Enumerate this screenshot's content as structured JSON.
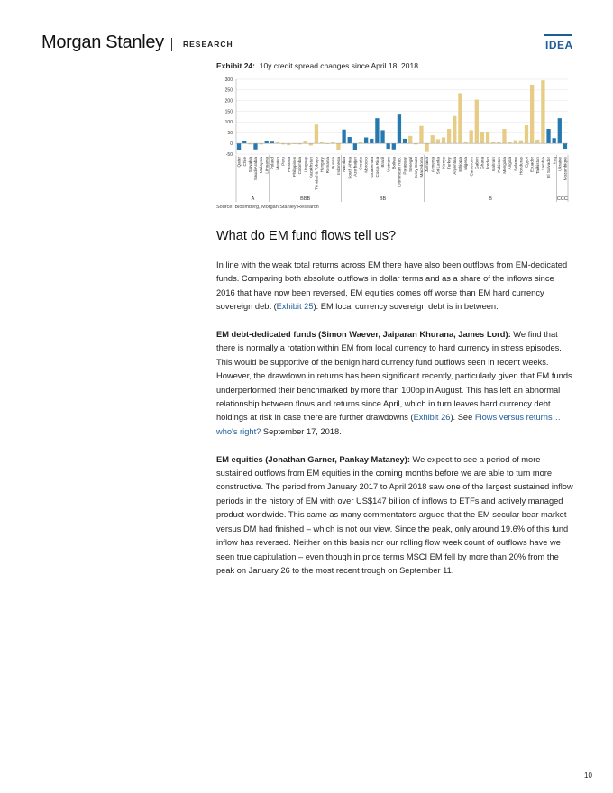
{
  "header": {
    "brand": "Morgan Stanley",
    "section": "RESEARCH",
    "tag": "IDEA"
  },
  "exhibit": {
    "label": "Exhibit 24:",
    "title": "10y credit spread changes since April 18, 2018",
    "source": "Source: Bloomberg, Morgan Stanley Research"
  },
  "chart_data": {
    "type": "bar",
    "ylim": [
      -50,
      300
    ],
    "yticks": [
      -50,
      0,
      50,
      100,
      150,
      200,
      250,
      300
    ],
    "groups": [
      {
        "label": "A",
        "categories": [
          "Qatar",
          "Chile",
          "Slovakia",
          "Saudi Arabia",
          "Malaysia",
          "Lithuania"
        ],
        "values": [
          -30,
          10,
          -5,
          -28,
          -5,
          12
        ],
        "colors": [
          "#2678b0",
          "#2678b0",
          "#e6cc85",
          "#2678b0",
          "#e6cc85",
          "#2678b0"
        ]
      },
      {
        "label": "BBB",
        "categories": [
          "Poland",
          "Mexico",
          "Peru",
          "Panama",
          "Philippines",
          "Colombia",
          "Uruguay",
          "Kazakhstan",
          "Trinidad & Tobago",
          "Hungary",
          "Romania",
          "Russia",
          "Indonesia"
        ],
        "values": [
          8,
          5,
          -5,
          -8,
          -3,
          -5,
          12,
          -10,
          88,
          5,
          -3,
          5,
          -30
        ],
        "colors": [
          "#2678b0",
          "#e6cc85",
          "#e6cc85",
          "#e6cc85",
          "#e6cc85",
          "#e6cc85",
          "#e6cc85",
          "#e6cc85",
          "#e6cc85",
          "#e6cc85",
          "#e6cc85",
          "#e6cc85",
          "#e6cc85"
        ]
      },
      {
        "label": "BB",
        "categories": [
          "Namibia",
          "South Africa",
          "Azerbaijan",
          "Croatia",
          "Morocco",
          "Guatemala",
          "Costa Rica",
          "Brazil",
          "Vietnam",
          "Bolivia",
          "Dominican Rep.",
          "Paraguay",
          "Senegal",
          "Ivory Coast",
          "Macedonia"
        ],
        "values": [
          65,
          30,
          -30,
          5,
          28,
          22,
          118,
          62,
          -25,
          -28,
          135,
          22,
          35,
          -5,
          82
        ],
        "colors": [
          "#2678b0",
          "#2678b0",
          "#2678b0",
          "#e6cc85",
          "#2678b0",
          "#2678b0",
          "#2678b0",
          "#2678b0",
          "#2678b0",
          "#2678b0",
          "#2678b0",
          "#2678b0",
          "#e6cc85",
          "#e6cc85",
          "#e6cc85"
        ]
      },
      {
        "label": "B",
        "categories": [
          "Jamaica",
          "Armenia",
          "Sri Lanka",
          "Kenya",
          "Turkey",
          "Argentina",
          "Ethiopia",
          "Nigeria",
          "Cameroon",
          "Gabon",
          "Ghana",
          "Jordan",
          "Bahrain",
          "Pakistan",
          "Mongolia",
          "Angola",
          "Belarus",
          "Honduras",
          "Egypt",
          "Ecuador",
          "Tajikistan",
          "Zambia",
          "El Salvador",
          "Iraq"
        ],
        "values": [
          -40,
          38,
          20,
          28,
          68,
          128,
          235,
          5,
          62,
          205,
          55,
          55,
          5,
          5,
          68,
          5,
          15,
          15,
          85,
          275,
          18,
          295,
          68,
          25
        ],
        "colors": [
          "#e6cc85",
          "#e6cc85",
          "#e6cc85",
          "#e6cc85",
          "#e6cc85",
          "#e6cc85",
          "#e6cc85",
          "#e6cc85",
          "#e6cc85",
          "#e6cc85",
          "#e6cc85",
          "#e6cc85",
          "#e6cc85",
          "#e6cc85",
          "#e6cc85",
          "#e6cc85",
          "#e6cc85",
          "#e6cc85",
          "#e6cc85",
          "#e6cc85",
          "#e6cc85",
          "#e6cc85",
          "#2678b0",
          "#2678b0"
        ]
      },
      {
        "label": "CCC",
        "categories": [
          "Ukraine",
          "Mozambique"
        ],
        "values": [
          118,
          -25
        ],
        "colors": [
          "#2678b0",
          "#2678b0"
        ]
      }
    ]
  },
  "heading": "What do EM fund flows tell us?",
  "paragraphs": [
    [
      {
        "text": "In line with the weak total returns across EM there have also been outflows from EM-dedicated funds. Comparing both absolute outflows in dollar terms and as a share of the inflows since 2016 that have now been reversed, EM equities comes off worse than EM hard currency sovereign debt ("
      },
      {
        "text": "Exhibit 25",
        "style": "link"
      },
      {
        "text": "). EM local currency sovereign debt is in between."
      }
    ],
    [
      {
        "text": "EM debt-dedicated funds (Simon Waever, Jaiparan Khurana, James Lord):",
        "style": "bold"
      },
      {
        "text": " We find that there is normally a rotation within EM from local currency to hard currency in stress episodes. This would be supportive of the benign hard currency fund outflows seen in recent weeks. However, the drawdown in returns has been significant recently, particularly given that EM funds underperformed their benchmarked by more than 100bp in August. This has left an abnormal relationship between flows and returns since April, which in turn leaves hard currency debt holdings at risk in case there are further drawdowns ("
      },
      {
        "text": "Exhibit 26",
        "style": "link"
      },
      {
        "text": "). See "
      },
      {
        "text": "Flows versus returns…who's right?",
        "style": "link"
      },
      {
        "text": " September 17, 2018."
      }
    ],
    [
      {
        "text": "EM equities (Jonathan Garner, Pankay Mataney):",
        "style": "bold"
      },
      {
        "text": " We expect to see a period of more sustained outflows from EM equities in the coming months before we are able to turn more constructive. The period from January 2017 to April 2018 saw one of the largest sustained inflow periods in the history of EM with over US$147 billion of inflows to ETFs and actively managed product worldwide. This came as many commentators argued that the EM secular bear market versus DM had finished – which is not our view. Since the peak, only around 19.6% of this fund inflow has reversed. Neither on this basis nor our rolling flow week count of outflows have we seen true capitulation – even though in price terms MSCI EM fell by more than 20% from the peak on January 26 to the most recent trough on September 11."
      }
    ]
  ],
  "page_number": "10"
}
